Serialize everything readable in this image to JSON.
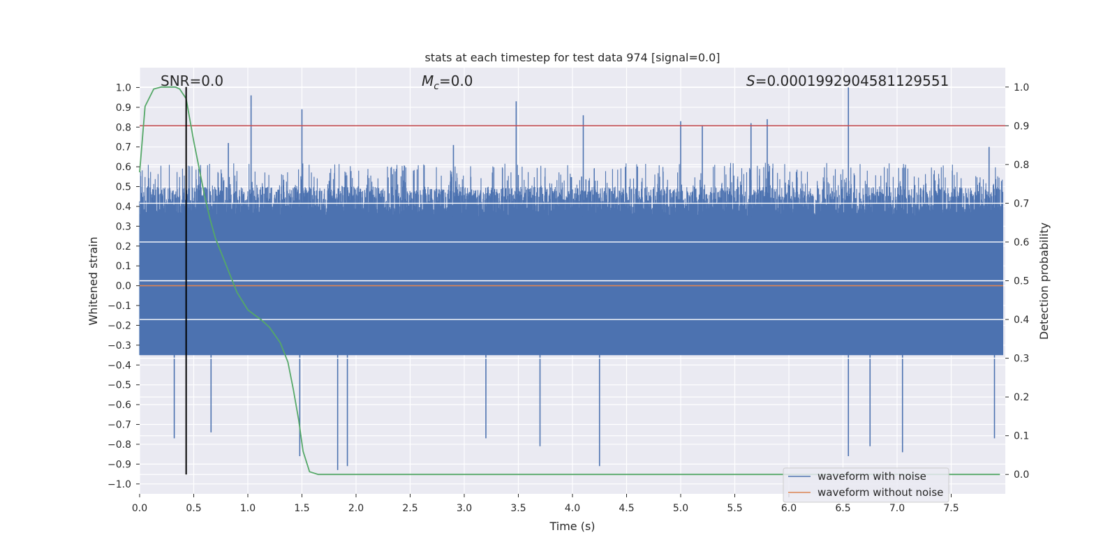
{
  "chart_data": {
    "type": "line",
    "title": "stats at each timestep for test data 974 [signal=0.0]",
    "xlabel": "Time (s)",
    "ylabel_left": "Whitened strain",
    "ylabel_right": "Detection probability",
    "xlim": [
      0.0,
      8.0
    ],
    "ylim_left": [
      -1.05,
      1.1
    ],
    "ylim_right": [
      -0.05,
      1.05
    ],
    "x_ticks": [
      0.0,
      0.5,
      1.0,
      1.5,
      2.0,
      2.5,
      3.0,
      3.5,
      4.0,
      4.5,
      5.0,
      5.5,
      6.0,
      6.5,
      7.0,
      7.5
    ],
    "x_tick_labels": [
      "0.0",
      "0.5",
      "1.0",
      "1.5",
      "2.0",
      "2.5",
      "3.0",
      "3.5",
      "4.0",
      "4.5",
      "5.0",
      "5.5",
      "6.0",
      "6.5",
      "7.0",
      "7.5"
    ],
    "y_left_ticks": [
      1.0,
      0.9,
      0.8,
      0.7,
      0.6,
      0.5,
      0.4,
      0.3,
      0.2,
      0.1,
      0.0,
      -0.1,
      -0.2,
      -0.3,
      -0.4,
      -0.5,
      -0.6,
      -0.7,
      -0.8,
      -0.9,
      -1.0
    ],
    "y_left_tick_labels": [
      "1.0",
      "0.9",
      "0.8",
      "0.7",
      "0.6",
      "0.5",
      "0.4",
      "0.3",
      "0.2",
      "0.1",
      "0.0",
      "−0.1",
      "−0.2",
      "−0.3",
      "−0.4",
      "−0.5",
      "−0.6",
      "−0.7",
      "−0.8",
      "−0.9",
      "−1.0"
    ],
    "y_right_ticks": [
      1.0,
      0.9,
      0.8,
      0.7,
      0.6,
      0.5,
      0.4,
      0.3,
      0.2,
      0.1,
      0.0
    ],
    "y_right_tick_labels": [
      "1.0",
      "0.9",
      "0.8",
      "0.7",
      "0.6",
      "0.5",
      "0.4",
      "0.3",
      "0.2",
      "0.1",
      "0.0"
    ],
    "annotations": {
      "snr": "SNR=0.0",
      "mc_symbol": "M",
      "mc_sub": "c",
      "mc_value": "=0.0",
      "s_symbol": "S",
      "s_value": "=0.0001992904581129551"
    },
    "threshold_right": 0.9,
    "marker_time": 0.43,
    "legend": {
      "position": "lower right",
      "entries": [
        "waveform with noise",
        "waveform without noise"
      ]
    },
    "series": [
      {
        "name": "waveform with noise",
        "axis": "left",
        "color": "#4c72b0",
        "kind": "noise",
        "core_band": [
          -0.35,
          0.35
        ],
        "typical_band": [
          -0.5,
          0.5
        ],
        "spikes": [
          {
            "x": 1.03,
            "y": 0.96
          },
          {
            "x": 1.5,
            "y": 0.89
          },
          {
            "x": 3.48,
            "y": 0.93
          },
          {
            "x": 4.1,
            "y": 0.86
          },
          {
            "x": 5.0,
            "y": 0.83
          },
          {
            "x": 5.2,
            "y": 0.81
          },
          {
            "x": 5.65,
            "y": 0.82
          },
          {
            "x": 5.8,
            "y": 0.84
          },
          {
            "x": 6.55,
            "y": 1.0
          },
          {
            "x": 7.85,
            "y": 0.7
          },
          {
            "x": 2.9,
            "y": 0.71
          },
          {
            "x": 0.82,
            "y": 0.72
          },
          {
            "x": 1.83,
            "y": -0.93
          },
          {
            "x": 1.92,
            "y": -0.91
          },
          {
            "x": 4.25,
            "y": -0.91
          },
          {
            "x": 6.55,
            "y": -0.86
          },
          {
            "x": 6.75,
            "y": -0.81
          },
          {
            "x": 7.05,
            "y": -0.84
          },
          {
            "x": 1.48,
            "y": -0.86
          },
          {
            "x": 0.32,
            "y": -0.77
          },
          {
            "x": 0.66,
            "y": -0.74
          },
          {
            "x": 3.2,
            "y": -0.77
          },
          {
            "x": 3.7,
            "y": -0.81
          },
          {
            "x": 7.9,
            "y": -0.77
          }
        ]
      },
      {
        "name": "waveform without noise",
        "axis": "left",
        "color": "#dd8452",
        "x": [
          0.0,
          8.0
        ],
        "y": [
          0.0,
          0.0
        ]
      },
      {
        "name": "detection probability",
        "axis": "right",
        "color": "#55a868",
        "x": [
          0.0,
          0.05,
          0.13,
          0.2,
          0.27,
          0.33,
          0.37,
          0.43,
          0.5,
          0.55,
          0.6,
          0.65,
          0.7,
          0.8,
          0.9,
          1.0,
          1.07,
          1.12,
          1.2,
          1.3,
          1.37,
          1.42,
          1.47,
          1.51,
          1.57,
          1.65,
          7.95
        ],
        "y": [
          0.78,
          0.95,
          0.995,
          1.0,
          1.0,
          1.0,
          0.995,
          0.97,
          0.86,
          0.79,
          0.72,
          0.66,
          0.61,
          0.54,
          0.47,
          0.425,
          0.41,
          0.4,
          0.38,
          0.34,
          0.29,
          0.22,
          0.14,
          0.06,
          0.007,
          0.0,
          0.0
        ]
      }
    ]
  }
}
